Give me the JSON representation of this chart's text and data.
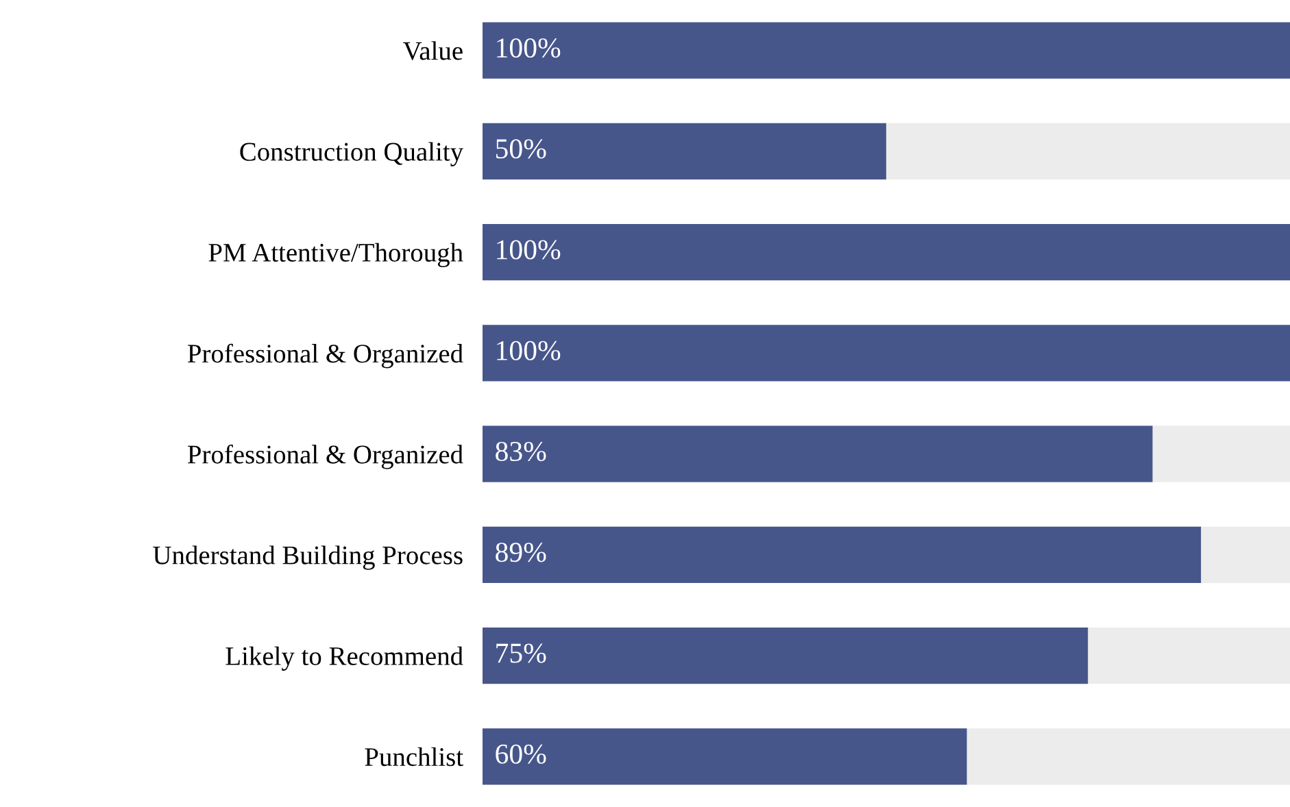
{
  "chart_data": {
    "type": "bar",
    "orientation": "horizontal",
    "stacked": true,
    "categories": [
      "Value",
      "Construction Quality",
      "PM Attentive/Thorough",
      "Professional & Organized",
      "Professional & Organized",
      "Understand Building Process",
      "Likely to Recommend",
      "Punchlist"
    ],
    "series": [
      {
        "color": "#47568a",
        "values": [
          100,
          50,
          100,
          100,
          83,
          89,
          75,
          60
        ],
        "value_labels": [
          "100%",
          "50%",
          "100%",
          "100%",
          "83%",
          "89%",
          "75%",
          "60%"
        ]
      },
      {
        "color": "#ececec",
        "values": [
          0,
          50,
          0,
          0,
          17,
          11,
          25,
          40
        ]
      }
    ],
    "grid": false,
    "legend": false,
    "tick_labels": "y"
  }
}
